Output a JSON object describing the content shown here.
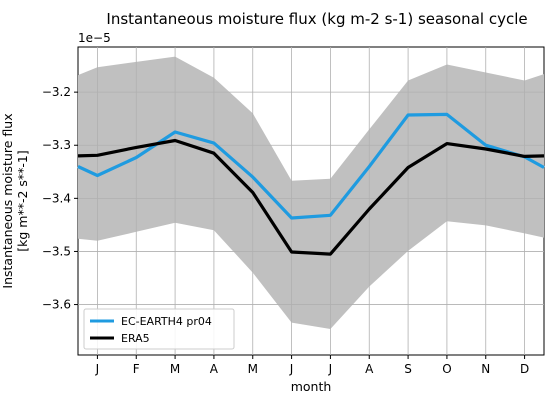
{
  "chart_data": {
    "type": "line",
    "title": "Instantaneous moisture flux (kg m-2 s-1) seasonal cycle",
    "offset_label": "1e−5",
    "xlabel": "month",
    "ylabel_lines": [
      "Instantaneous moisture flux",
      "[kg m**-2 s**-1]"
    ],
    "x_tick_labels": [
      "J",
      "F",
      "M",
      "A",
      "M",
      "J",
      "J",
      "A",
      "S",
      "O",
      "N",
      "D"
    ],
    "y_ticks": [
      -3.2,
      -3.3,
      -3.4,
      -3.5,
      -3.6
    ],
    "y_tick_labels": [
      "−3.2",
      "−3.3",
      "−3.4",
      "−3.5",
      "−3.6"
    ],
    "xlim": [
      0.5,
      12.5
    ],
    "ylim": [
      -3.695,
      -3.115
    ],
    "grid": true,
    "legend_position": "lower-left",
    "x": [
      0.5,
      1,
      2,
      3,
      4,
      5,
      6,
      7,
      8,
      9,
      10,
      11,
      12,
      12.5
    ],
    "band": {
      "color": "#c0c0c0",
      "upper": [
        -3.168,
        -3.153,
        -3.143,
        -3.133,
        -3.173,
        -3.24,
        -3.367,
        -3.363,
        -3.27,
        -3.178,
        -3.148,
        -3.163,
        -3.178,
        -3.166
      ],
      "lower": [
        -3.476,
        -3.48,
        -3.463,
        -3.446,
        -3.46,
        -3.54,
        -3.634,
        -3.646,
        -3.566,
        -3.499,
        -3.443,
        -3.451,
        -3.466,
        -3.474
      ]
    },
    "series": [
      {
        "name": "EC-EARTH4 pr04",
        "color": "#1f9be0",
        "values": [
          -3.34,
          -3.357,
          -3.323,
          -3.275,
          -3.296,
          -3.36,
          -3.437,
          -3.432,
          -3.34,
          -3.243,
          -3.242,
          -3.3,
          -3.322,
          -3.342
        ]
      },
      {
        "name": "ERA5",
        "color": "#000000",
        "values": [
          -3.32,
          -3.319,
          -3.304,
          -3.291,
          -3.315,
          -3.389,
          -3.501,
          -3.505,
          -3.42,
          -3.342,
          -3.297,
          -3.307,
          -3.321,
          -3.32
        ]
      }
    ]
  }
}
